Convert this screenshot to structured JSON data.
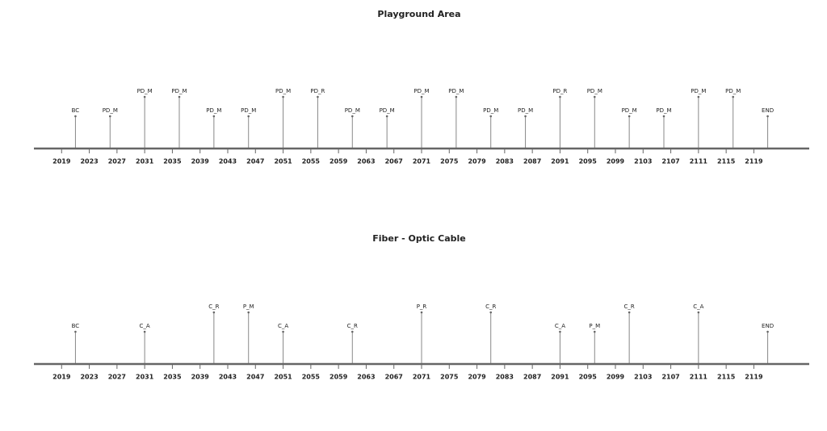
{
  "chart_data": [
    {
      "type": "timeline",
      "title": "Playground Area",
      "x": [
        2021,
        2026,
        2031,
        2036,
        2041,
        2046,
        2051,
        2056,
        2061,
        2066,
        2071,
        2076,
        2081,
        2086,
        2091,
        2096,
        2101,
        2106,
        2111,
        2116,
        2121
      ],
      "labels": [
        "BC",
        "PD_M",
        "PD_M",
        "PD_M",
        "PD_M",
        "PD_M",
        "PD_M",
        "PD_R",
        "PD_M",
        "PD_M",
        "PD_M",
        "PD_M",
        "PD_M",
        "PD_M",
        "PD_R",
        "PD_M",
        "PD_M",
        "PD_M",
        "PD_M",
        "PD_M",
        "END"
      ],
      "xlim": [
        2015,
        2127
      ],
      "xticks": [
        2019,
        2023,
        2027,
        2031,
        2035,
        2039,
        2043,
        2047,
        2051,
        2055,
        2059,
        2063,
        2067,
        2071,
        2075,
        2079,
        2083,
        2087,
        2091,
        2095,
        2099,
        2103,
        2107,
        2111,
        2115,
        2119
      ]
    },
    {
      "type": "timeline",
      "title": "Fiber - Optic Cable",
      "x": [
        2021,
        2031,
        2041,
        2046,
        2051,
        2061,
        2071,
        2081,
        2091,
        2096,
        2101,
        2111,
        2121
      ],
      "labels": [
        "BC",
        "C_A",
        "C_R",
        "P_M",
        "C_A",
        "C_R",
        "P_R",
        "C_R",
        "C_A",
        "P_M",
        "C_R",
        "C_A",
        "END"
      ],
      "xlim": [
        2015,
        2127
      ],
      "xticks": [
        2019,
        2023,
        2027,
        2031,
        2035,
        2039,
        2043,
        2047,
        2051,
        2055,
        2059,
        2063,
        2067,
        2071,
        2075,
        2079,
        2083,
        2087,
        2091,
        2095,
        2099,
        2103,
        2107,
        2111,
        2115,
        2119
      ]
    }
  ]
}
